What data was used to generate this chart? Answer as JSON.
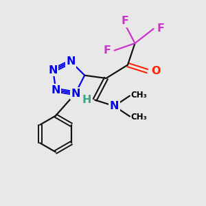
{
  "bg_color": "#e8e8e8",
  "atom_colors": {
    "N": "#0000ee",
    "O": "#ff2200",
    "F": "#cc33cc",
    "C": "#000000",
    "H": "#33aa88"
  },
  "bond_color": "#111111",
  "figsize": [
    3.0,
    3.0
  ],
  "dpi": 100
}
